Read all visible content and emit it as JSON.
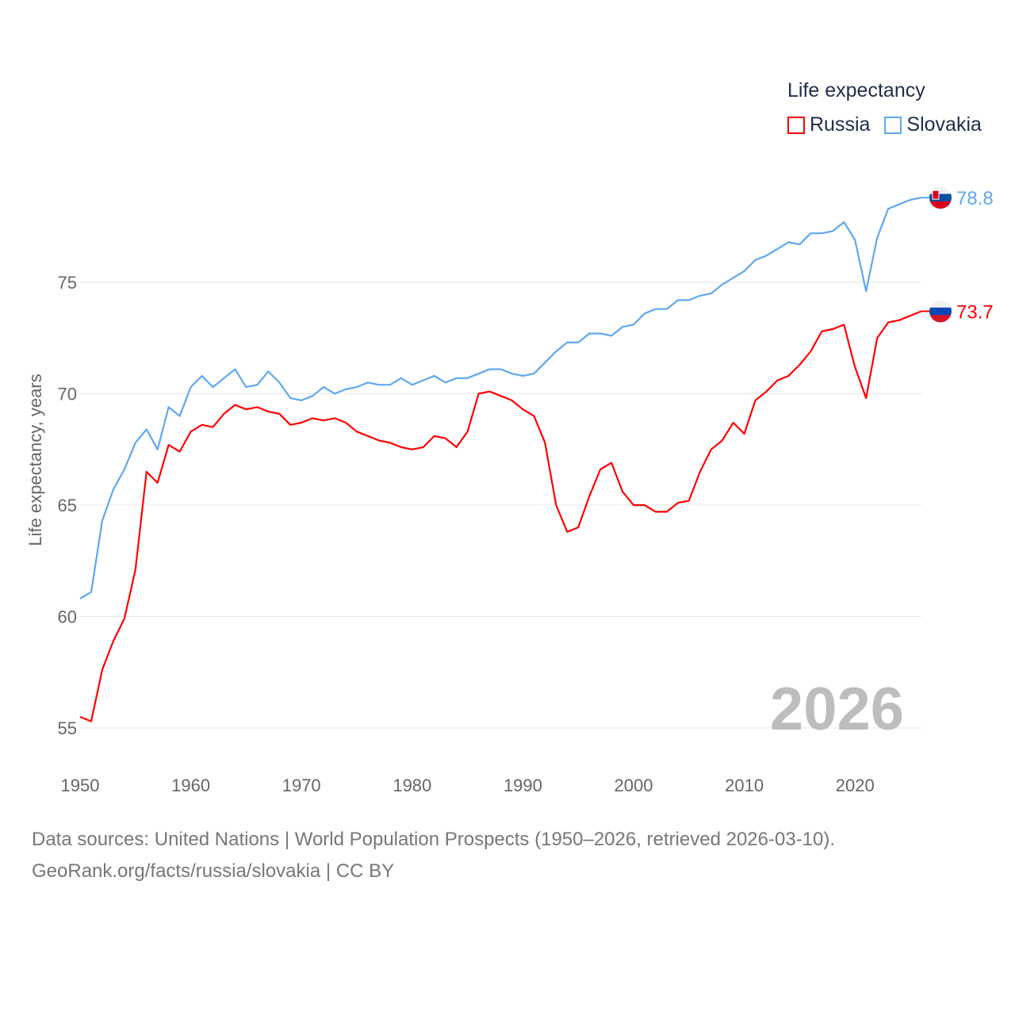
{
  "chart_data": {
    "type": "line",
    "title": "",
    "legend_title": "Life expectancy",
    "legend_position": "top-right",
    "xlabel": "",
    "ylabel": "Life expectancy, years",
    "xlim": [
      1950,
      2026
    ],
    "ylim": [
      53.5,
      80
    ],
    "x_ticks": [
      "1950",
      "1960",
      "1970",
      "1980",
      "1990",
      "2000",
      "2010",
      "2020"
    ],
    "y_ticks": [
      "55",
      "60",
      "65",
      "70",
      "75"
    ],
    "grid": true,
    "year_label": "2026",
    "x": [
      1950,
      1951,
      1952,
      1953,
      1954,
      1955,
      1956,
      1957,
      1958,
      1959,
      1960,
      1961,
      1962,
      1963,
      1964,
      1965,
      1966,
      1967,
      1968,
      1969,
      1970,
      1971,
      1972,
      1973,
      1974,
      1975,
      1976,
      1977,
      1978,
      1979,
      1980,
      1981,
      1982,
      1983,
      1984,
      1985,
      1986,
      1987,
      1988,
      1989,
      1990,
      1991,
      1992,
      1993,
      1994,
      1995,
      1996,
      1997,
      1998,
      1999,
      2000,
      2001,
      2002,
      2003,
      2004,
      2005,
      2006,
      2007,
      2008,
      2009,
      2010,
      2011,
      2012,
      2013,
      2014,
      2015,
      2016,
      2017,
      2018,
      2019,
      2020,
      2021,
      2022,
      2023,
      2024,
      2025,
      2026
    ],
    "series": [
      {
        "name": "Russia",
        "color": "#ff0000",
        "end_label": "73.7",
        "values": [
          55.5,
          55.3,
          57.6,
          58.9,
          59.9,
          62.1,
          66.5,
          66.0,
          67.7,
          67.4,
          68.3,
          68.6,
          68.5,
          69.1,
          69.5,
          69.3,
          69.4,
          69.2,
          69.1,
          68.6,
          68.7,
          68.9,
          68.8,
          68.9,
          68.7,
          68.3,
          68.1,
          67.9,
          67.8,
          67.6,
          67.5,
          67.6,
          68.1,
          68.0,
          67.6,
          68.3,
          70.0,
          70.1,
          69.9,
          69.7,
          69.3,
          69.0,
          67.8,
          65.0,
          63.8,
          64.0,
          65.4,
          66.6,
          66.9,
          65.6,
          65.0,
          65.0,
          64.7,
          64.7,
          65.1,
          65.2,
          66.5,
          67.5,
          67.9,
          68.7,
          68.2,
          69.7,
          70.1,
          70.6,
          70.8,
          71.3,
          71.9,
          72.8,
          72.9,
          73.1,
          71.2,
          69.8,
          72.5,
          73.2,
          73.3,
          73.5,
          73.7
        ]
      },
      {
        "name": "Slovakia",
        "color": "#5fa8ee",
        "end_label": "78.8",
        "values": [
          60.8,
          61.1,
          64.3,
          65.7,
          66.6,
          67.8,
          68.4,
          67.5,
          69.4,
          69.0,
          70.3,
          70.8,
          70.3,
          70.7,
          71.1,
          70.3,
          70.4,
          71.0,
          70.5,
          69.8,
          69.7,
          69.9,
          70.3,
          70.0,
          70.2,
          70.3,
          70.5,
          70.4,
          70.4,
          70.7,
          70.4,
          70.6,
          70.8,
          70.5,
          70.7,
          70.7,
          70.9,
          71.1,
          71.1,
          70.9,
          70.8,
          70.9,
          71.4,
          71.9,
          72.3,
          72.3,
          72.7,
          72.7,
          72.6,
          73.0,
          73.1,
          73.6,
          73.8,
          73.8,
          74.2,
          74.2,
          74.4,
          74.5,
          74.9,
          75.2,
          75.5,
          76.0,
          76.2,
          76.5,
          76.8,
          76.7,
          77.2,
          77.2,
          77.3,
          77.7,
          76.9,
          74.6,
          77.0,
          78.3,
          78.5,
          78.7,
          78.8
        ]
      }
    ]
  },
  "footer": {
    "line1": "Data sources: United Nations | World Population Prospects (1950–2026, retrieved 2026-03-10).",
    "line2": "GeoRank.org/facts/russia/slovakia | CC BY"
  }
}
